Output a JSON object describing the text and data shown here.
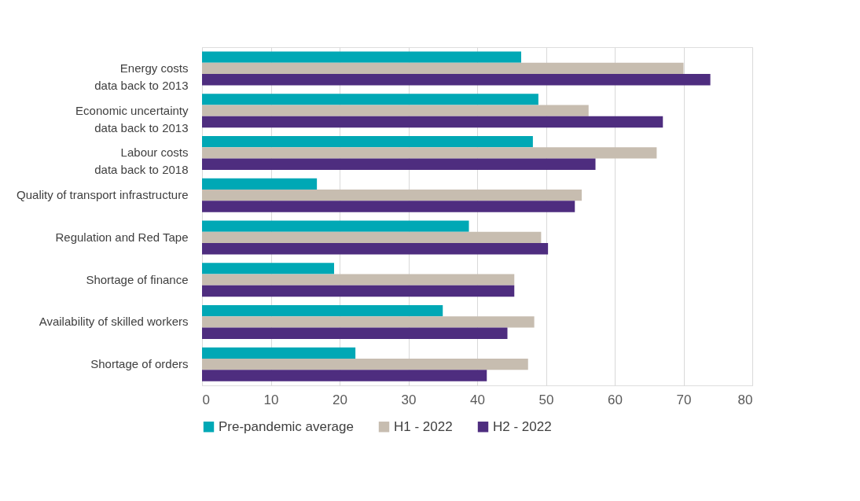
{
  "chart_data": {
    "type": "bar",
    "orientation": "horizontal",
    "categories": [
      "Energy costs\ndata back to 2013",
      "Economic uncertainty\ndata back to 2013",
      "Labour costs\ndata back to 2018",
      "Quality of transport infrastructure",
      "Regulation and Red Tape",
      "Shortage of finance",
      "Availability of skilled workers",
      "Shortage of orders"
    ],
    "series": [
      {
        "name": "Pre-pandemic average",
        "color": "#00a8b5",
        "values": [
          46.4,
          48.9,
          48.1,
          16.7,
          38.8,
          19.2,
          35.0,
          22.3
        ]
      },
      {
        "name": "H1 - 2022",
        "color": "#c7bdb0",
        "values": [
          70.0,
          56.2,
          66.1,
          55.2,
          49.3,
          45.4,
          48.3,
          47.4
        ]
      },
      {
        "name": "H2 - 2022",
        "color": "#4e2d7f",
        "values": [
          73.9,
          67.0,
          57.2,
          54.2,
          50.3,
          45.4,
          44.4,
          41.4
        ]
      }
    ],
    "xlim": [
      0,
      80
    ],
    "xticks": [
      0,
      10,
      20,
      30,
      40,
      50,
      60,
      70,
      80
    ],
    "grid": "x",
    "legend": "bottom"
  }
}
